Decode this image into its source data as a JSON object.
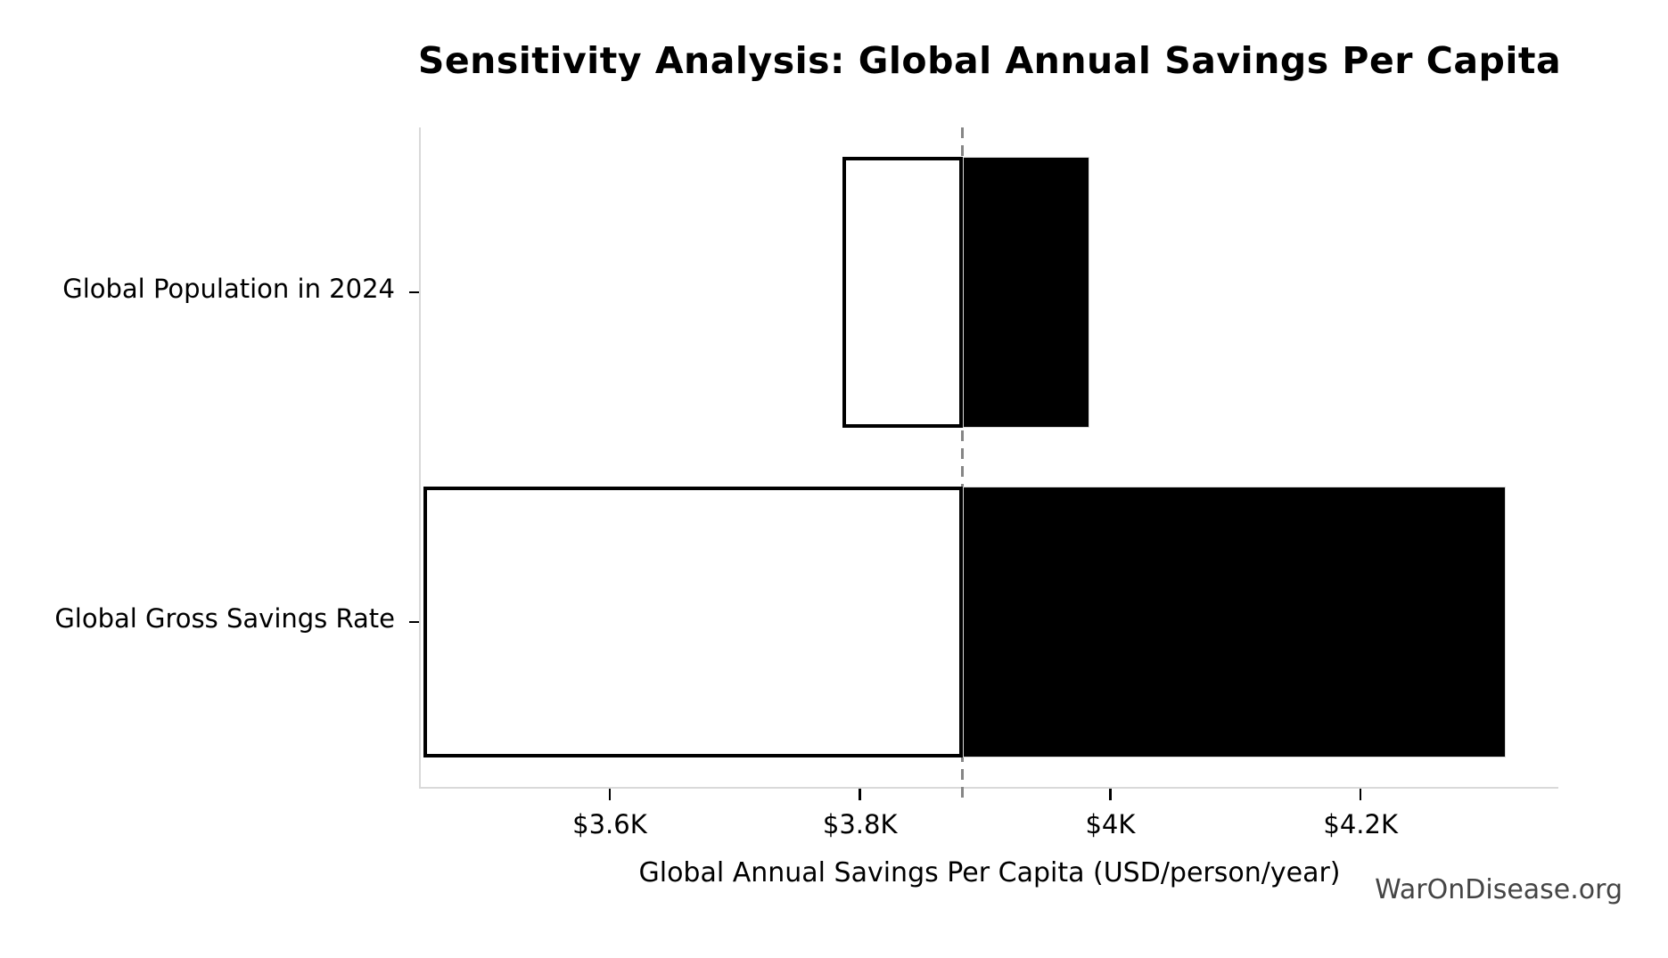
{
  "chart_data": {
    "type": "bar",
    "subtype": "tornado-sensitivity",
    "title": "Sensitivity Analysis: Global Annual Savings Per Capita",
    "xlabel": "Global Annual Savings Per Capita (USD/person/year)",
    "ylabel": "",
    "watermark": "WarOnDisease.org",
    "orientation": "horizontal",
    "baseline_value": 3882,
    "xlim": [
      3449,
      4358
    ],
    "ylim": [
      -0.5,
      1.5
    ],
    "bar_thickness_data_units": 0.82,
    "grid": false,
    "legend": "none",
    "x_ticks": [
      {
        "value": 3600,
        "label": "$3.6K"
      },
      {
        "value": 3800,
        "label": "$3.8K"
      },
      {
        "value": 4000,
        "label": "$4K"
      },
      {
        "value": 4200,
        "label": "$4.2K"
      }
    ],
    "bars": [
      {
        "label": "Global Population in 2024",
        "row": 1,
        "low": 3786,
        "high": 3983
      },
      {
        "label": "Global Gross Savings Rate",
        "row": 0,
        "low": 3451,
        "high": 4316
      }
    ],
    "colors": {
      "low_side_fill": "#ffffff",
      "low_side_edge": "#000000",
      "high_side_fill": "#000000",
      "high_side_edge": "#d9d9d9",
      "baseline_line": "#868686",
      "spine": "#d9d9d9",
      "tick_mark": "#000000",
      "text": "#000000",
      "watermark_text": "#454545"
    }
  }
}
